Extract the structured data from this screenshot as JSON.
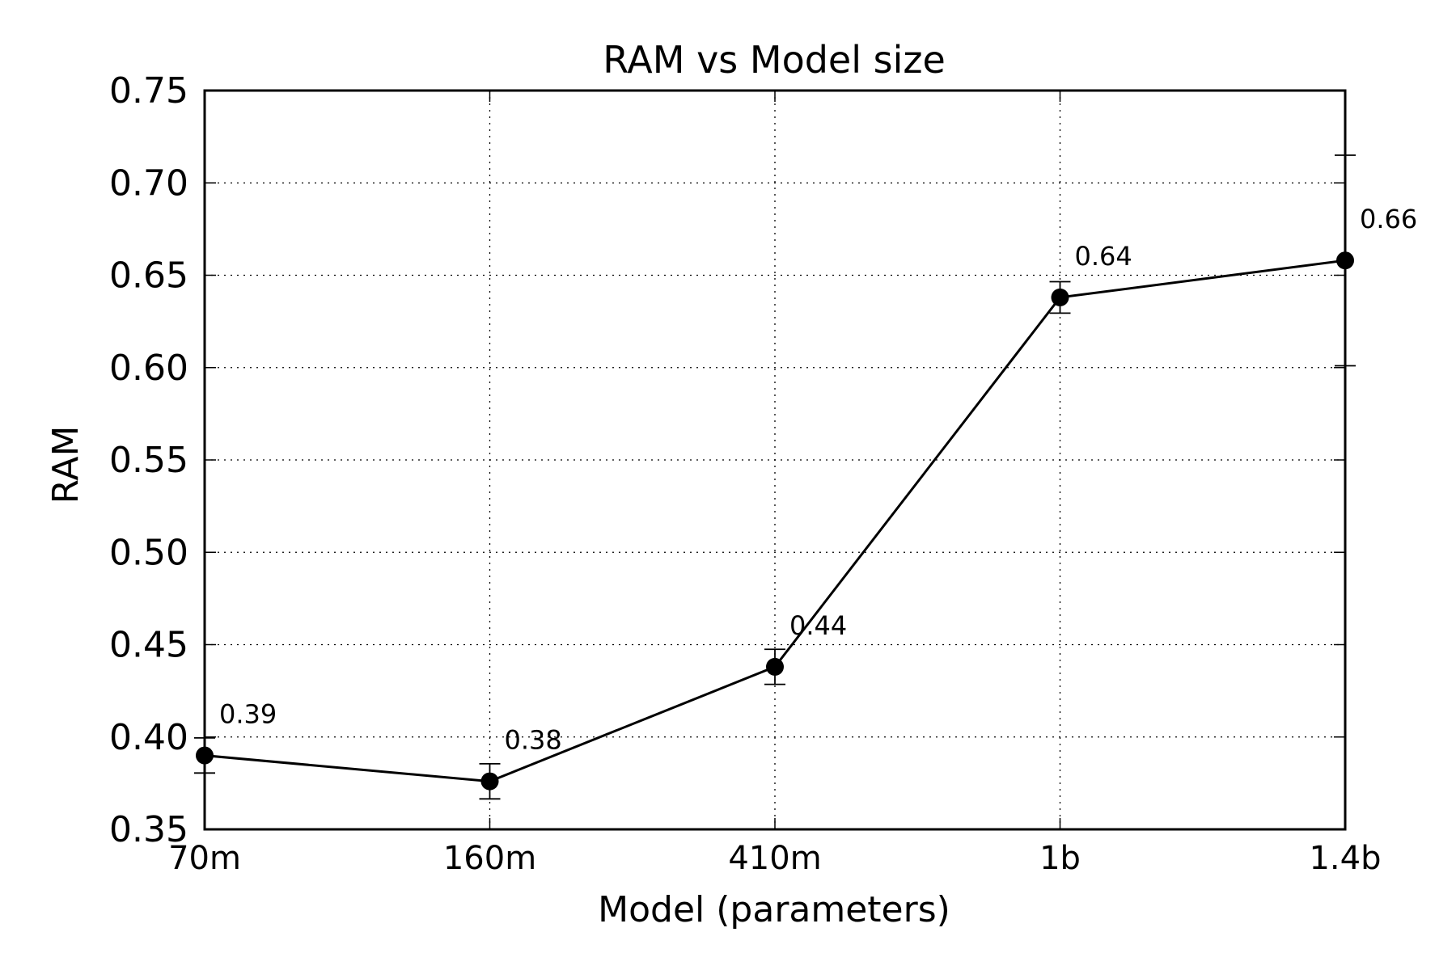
{
  "chart_data": {
    "type": "line",
    "title": "RAM vs Model size",
    "xlabel": "Model (parameters)",
    "ylabel": "RAM",
    "categories": [
      "70m",
      "160m",
      "410m",
      "1b",
      "1.4b"
    ],
    "series": [
      {
        "values": [
          0.39,
          0.376,
          0.438,
          0.638,
          0.658
        ],
        "error": [
          0.0095,
          0.0095,
          0.0095,
          0.0085,
          0.057
        ],
        "labels": [
          "0.39",
          "0.38",
          "0.44",
          "0.64",
          "0.66"
        ],
        "color": "#000000",
        "marker": "circle"
      }
    ],
    "ylim": [
      0.35,
      0.75
    ],
    "yticks": [
      "0.35",
      "0.40",
      "0.45",
      "0.50",
      "0.55",
      "0.60",
      "0.65",
      "0.70",
      "0.75"
    ],
    "grid": true
  }
}
